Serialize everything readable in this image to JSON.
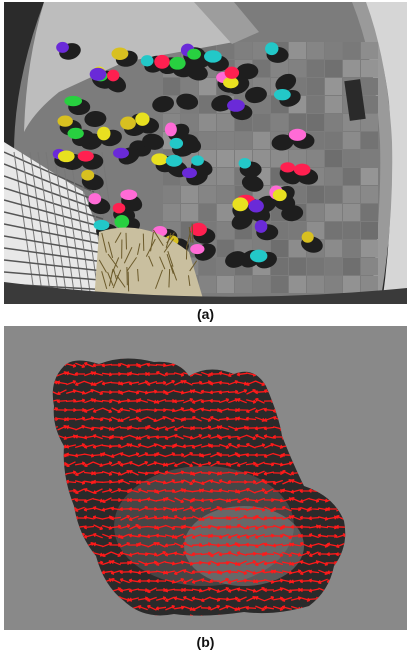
{
  "figure": {
    "panel_a": {
      "caption": "(a)",
      "depicts": "overhead-fisheye-crowd-with-colored-person-segments",
      "segment_colors": [
        "#e8e020",
        "#ff6bd6",
        "#23c8c8",
        "#28d040",
        "#6a2ad8",
        "#ff2050",
        "#d8c020"
      ]
    },
    "panel_b": {
      "caption": "(b)",
      "depicts": "dense-optical-flow-arrows-over-crowd-region",
      "arrow_color": "#ff1a1a",
      "region_color": "#2a2a2a",
      "background_color": "#898989"
    }
  }
}
